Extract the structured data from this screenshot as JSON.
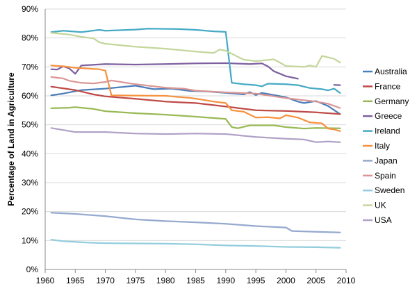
{
  "chart_data": {
    "type": "line",
    "title": "",
    "xlabel": "",
    "ylabel": "Percentage of Land in Agriculture",
    "xlim": [
      1960,
      2010
    ],
    "ylim": [
      0,
      90
    ],
    "xticks": [
      1960,
      1965,
      1970,
      1975,
      1980,
      1985,
      1990,
      1995,
      2000,
      2005,
      2010
    ],
    "yticks": [
      0,
      10,
      20,
      30,
      40,
      50,
      60,
      70,
      80,
      90
    ],
    "x_tick_labels": [
      "1960",
      "1965",
      "1970",
      "1975",
      "1980",
      "1985",
      "1990",
      "1995",
      "2000",
      "2005",
      "2010"
    ],
    "y_tick_labels": [
      "0%",
      "10%",
      "20%",
      "30%",
      "40%",
      "50%",
      "60%",
      "70%",
      "80%",
      "90%"
    ],
    "grid": "horizontal",
    "legend_position": "right",
    "series": [
      {
        "name": "Australia",
        "color": "#4a7ebb",
        "points": [
          [
            1961,
            60.2
          ],
          [
            1963,
            60.8
          ],
          [
            1966,
            62.0
          ],
          [
            1970,
            62.5
          ],
          [
            1975,
            63.5
          ],
          [
            1978,
            62.3
          ],
          [
            1981,
            62.5
          ],
          [
            1984,
            61.7
          ],
          [
            1987,
            61.5
          ],
          [
            1990,
            61.0
          ],
          [
            1993,
            60.5
          ],
          [
            1994,
            61.3
          ],
          [
            1995,
            60.3
          ],
          [
            1996,
            61.0
          ],
          [
            1998,
            60.3
          ],
          [
            2000,
            59.5
          ],
          [
            2002,
            58.0
          ],
          [
            2003,
            57.5
          ],
          [
            2005,
            58.2
          ],
          [
            2007,
            56.5
          ],
          [
            2009,
            53.7
          ]
        ]
      },
      {
        "name": "France",
        "color": "#be4b48",
        "points": [
          [
            1961,
            63.2
          ],
          [
            1965,
            62.0
          ],
          [
            1968,
            60.5
          ],
          [
            1970,
            59.8
          ],
          [
            1975,
            59.0
          ],
          [
            1980,
            58.0
          ],
          [
            1985,
            57.5
          ],
          [
            1990,
            56.3
          ],
          [
            1995,
            55.0
          ],
          [
            2000,
            54.8
          ],
          [
            2005,
            54.3
          ],
          [
            2009,
            53.7
          ]
        ]
      },
      {
        "name": "Germany",
        "color": "#98b954",
        "points": [
          [
            1961,
            55.7
          ],
          [
            1964,
            55.9
          ],
          [
            1965,
            56.1
          ],
          [
            1968,
            55.5
          ],
          [
            1970,
            54.7
          ],
          [
            1975,
            54.0
          ],
          [
            1980,
            53.5
          ],
          [
            1985,
            52.8
          ],
          [
            1990,
            52.0
          ],
          [
            1991,
            49.2
          ],
          [
            1992,
            48.8
          ],
          [
            1994,
            49.8
          ],
          [
            1998,
            49.8
          ],
          [
            2000,
            49.2
          ],
          [
            2003,
            48.7
          ],
          [
            2005,
            48.9
          ],
          [
            2009,
            48.8
          ]
        ]
      },
      {
        "name": "Greece",
        "color": "#7d60a0",
        "points": [
          [
            1961,
            69.2
          ],
          [
            1962,
            69.1
          ],
          [
            1963,
            70.2
          ],
          [
            1964,
            69.5
          ],
          [
            1965,
            67.6
          ],
          [
            1966,
            70.5
          ],
          [
            1970,
            71.0
          ],
          [
            1975,
            70.8
          ],
          [
            1980,
            71.0
          ],
          [
            1985,
            71.2
          ],
          [
            1990,
            71.3
          ],
          [
            1994,
            71.0
          ],
          [
            1996,
            71.2
          ],
          [
            1997,
            70.2
          ],
          [
            1998,
            68.5
          ],
          [
            2000,
            66.8
          ],
          [
            2002,
            65.9
          ],
          [
            2003,
            null
          ],
          [
            2008,
            63.8
          ],
          [
            2009,
            63.7
          ]
        ]
      },
      {
        "name": "Ireland",
        "color": "#46aac5",
        "points": [
          [
            1961,
            82.0
          ],
          [
            1963,
            82.5
          ],
          [
            1966,
            82.0
          ],
          [
            1969,
            82.8
          ],
          [
            1970,
            82.5
          ],
          [
            1975,
            82.9
          ],
          [
            1977,
            83.2
          ],
          [
            1982,
            83.1
          ],
          [
            1985,
            82.8
          ],
          [
            1988,
            82.3
          ],
          [
            1990,
            82.1
          ],
          [
            1991,
            64.5
          ],
          [
            1993,
            64.0
          ],
          [
            1995,
            63.7
          ],
          [
            1996,
            63.3
          ],
          [
            1997,
            64.2
          ],
          [
            2000,
            64.0
          ],
          [
            2002,
            63.7
          ],
          [
            2004,
            62.7
          ],
          [
            2006,
            62.3
          ],
          [
            2007,
            61.9
          ],
          [
            2008,
            62.5
          ],
          [
            2009,
            61.0
          ]
        ]
      },
      {
        "name": "Italy",
        "color": "#f69240",
        "points": [
          [
            1961,
            70.5
          ],
          [
            1963,
            70.2
          ],
          [
            1965,
            69.7
          ],
          [
            1969,
            69.2
          ],
          [
            1970,
            68.7
          ],
          [
            1971,
            60.2
          ],
          [
            1975,
            60.1
          ],
          [
            1980,
            60.0
          ],
          [
            1984,
            59.3
          ],
          [
            1986,
            58.7
          ],
          [
            1988,
            58.0
          ],
          [
            1990,
            57.5
          ],
          [
            1991,
            55.0
          ],
          [
            1993,
            54.5
          ],
          [
            1995,
            52.5
          ],
          [
            1997,
            52.6
          ],
          [
            1999,
            52.2
          ],
          [
            2000,
            53.3
          ],
          [
            2002,
            52.5
          ],
          [
            2004,
            50.8
          ],
          [
            2006,
            50.5
          ],
          [
            2007,
            48.7
          ],
          [
            2008,
            48.4
          ],
          [
            2009,
            47.8
          ]
        ]
      },
      {
        "name": "Japan",
        "color": "#95a9cf",
        "points": [
          [
            1961,
            19.6
          ],
          [
            1965,
            19.2
          ],
          [
            1970,
            18.4
          ],
          [
            1975,
            17.3
          ],
          [
            1980,
            16.7
          ],
          [
            1985,
            16.3
          ],
          [
            1990,
            15.8
          ],
          [
            1995,
            15.0
          ],
          [
            1998,
            14.7
          ],
          [
            2000,
            14.5
          ],
          [
            2001,
            13.3
          ],
          [
            2005,
            13.0
          ],
          [
            2009,
            12.8
          ]
        ]
      },
      {
        "name": "Spain",
        "color": "#da9694",
        "points": [
          [
            1961,
            66.5
          ],
          [
            1963,
            66.0
          ],
          [
            1964,
            65.2
          ],
          [
            1966,
            64.5
          ],
          [
            1968,
            64.3
          ],
          [
            1970,
            64.8
          ],
          [
            1971,
            65.3
          ],
          [
            1975,
            64.0
          ],
          [
            1980,
            62.8
          ],
          [
            1983,
            62.5
          ],
          [
            1985,
            61.8
          ],
          [
            1990,
            61.2
          ],
          [
            1995,
            60.8
          ],
          [
            2000,
            59.2
          ],
          [
            2003,
            58.5
          ],
          [
            2005,
            58.0
          ],
          [
            2007,
            57.3
          ],
          [
            2009,
            55.8
          ]
        ]
      },
      {
        "name": "Sweden",
        "color": "#93cddd",
        "points": [
          [
            1961,
            10.3
          ],
          [
            1963,
            9.8
          ],
          [
            1967,
            9.3
          ],
          [
            1970,
            9.1
          ],
          [
            1975,
            9.0
          ],
          [
            1980,
            8.9
          ],
          [
            1985,
            8.7
          ],
          [
            1990,
            8.3
          ],
          [
            1995,
            8.1
          ],
          [
            2000,
            7.8
          ],
          [
            2005,
            7.7
          ],
          [
            2009,
            7.5
          ]
        ]
      },
      {
        "name": "UK",
        "color": "#c3d69b",
        "points": [
          [
            1961,
            81.8
          ],
          [
            1964,
            81.2
          ],
          [
            1966,
            80.4
          ],
          [
            1968,
            79.9
          ],
          [
            1969,
            78.5
          ],
          [
            1970,
            78.0
          ],
          [
            1975,
            77.0
          ],
          [
            1980,
            76.3
          ],
          [
            1985,
            75.3
          ],
          [
            1988,
            74.8
          ],
          [
            1989,
            76.0
          ],
          [
            1990,
            75.6
          ],
          [
            1992,
            73.5
          ],
          [
            1993,
            72.5
          ],
          [
            1995,
            72.0
          ],
          [
            1998,
            72.6
          ],
          [
            1999,
            71.5
          ],
          [
            2000,
            70.3
          ],
          [
            2003,
            70.0
          ],
          [
            2004,
            70.5
          ],
          [
            2005,
            70.0
          ],
          [
            2006,
            73.8
          ],
          [
            2008,
            72.8
          ],
          [
            2009,
            71.5
          ]
        ]
      },
      {
        "name": "USA",
        "color": "#b2a1c7",
        "points": [
          [
            1961,
            48.9
          ],
          [
            1965,
            47.5
          ],
          [
            1970,
            47.5
          ],
          [
            1975,
            47.0
          ],
          [
            1980,
            46.8
          ],
          [
            1985,
            47.0
          ],
          [
            1990,
            46.8
          ],
          [
            1995,
            45.8
          ],
          [
            2000,
            45.2
          ],
          [
            2003,
            44.9
          ],
          [
            2005,
            44.0
          ],
          [
            2007,
            44.2
          ],
          [
            2009,
            44.0
          ]
        ]
      }
    ]
  }
}
